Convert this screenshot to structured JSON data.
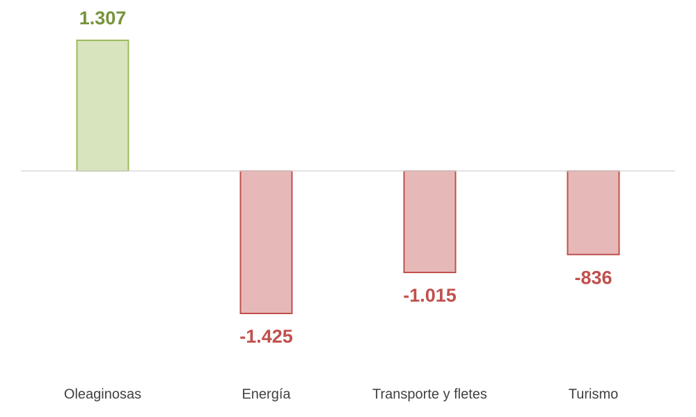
{
  "chart_data": {
    "type": "bar",
    "categories": [
      "Oleaginosas",
      "Energía",
      "Transporte y fletes",
      "Turismo"
    ],
    "values": [
      1307,
      -1425,
      -1015,
      -836
    ],
    "value_labels": [
      "1.307",
      "-1.425",
      "-1.015",
      "-836"
    ],
    "colors": {
      "positive": {
        "fill": "#d7e4bd",
        "stroke": "#9bbb59",
        "label": "#77933c"
      },
      "negative": {
        "fill": "#e6b9b8",
        "stroke": "#c0504d",
        "label": "#c0504d"
      }
    }
  }
}
